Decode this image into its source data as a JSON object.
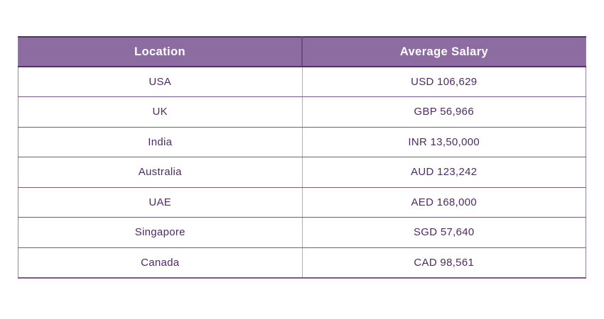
{
  "chart_data": {
    "type": "table",
    "columns": [
      "Location",
      "Average Salary"
    ],
    "rows": [
      [
        "USA",
        "USD 106,629"
      ],
      [
        "UK",
        "GBP 56,966"
      ],
      [
        "India",
        "INR 13,50,000"
      ],
      [
        "Australia",
        "AUD 123,242"
      ],
      [
        "UAE",
        "AED 168,000"
      ],
      [
        "Singapore",
        "SGD 57,640"
      ],
      [
        "Canada",
        "CAD 98,561"
      ]
    ]
  },
  "colors": {
    "background": "#ffffff",
    "header_bg": "#8d6ca2",
    "header_text": "#ffffff",
    "body_text": "#4f2a66",
    "border_dark": "#56306a",
    "row_divider": "#7a5a8c",
    "column_divider_header": "#6e4b85",
    "column_divider_body": "#b9a6c6",
    "outer_border": "#9a7fad"
  }
}
